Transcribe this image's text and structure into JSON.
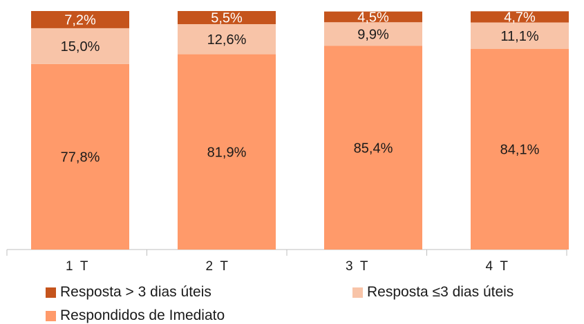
{
  "chart_data": {
    "type": "bar",
    "stacked": true,
    "categories": [
      "1  T",
      "2  T",
      "3  T",
      "4  T"
    ],
    "series": [
      {
        "name": "Respondidos de Imediato",
        "values": [
          77.8,
          81.9,
          85.4,
          84.1
        ],
        "labels": [
          "77,8%",
          "81,9%",
          "85,4%",
          "84,1%"
        ],
        "color": "#ff9a6a"
      },
      {
        "name": "Resposta ≤3 dias úteis",
        "values": [
          15.0,
          12.6,
          9.9,
          11.1
        ],
        "labels": [
          "15,0%",
          "12,6%",
          "9,9%",
          "11,1%"
        ],
        "color": "#f8c4a8"
      },
      {
        "name": "Resposta > 3 dias úteis",
        "values": [
          7.2,
          5.5,
          4.5,
          4.7
        ],
        "labels": [
          "7,2%",
          "5,5%",
          "4,5%",
          "4,7%"
        ],
        "color": "#c5541c"
      }
    ],
    "ylim": [
      0,
      100
    ],
    "grid": false,
    "legend_position": "bottom"
  },
  "legend": {
    "items": [
      {
        "label": "Resposta > 3 dias úteis",
        "color": "#c5541c"
      },
      {
        "label": "Resposta ≤3 dias úteis",
        "color": "#f8c4a8"
      },
      {
        "label": "Respondidos de Imediato",
        "color": "#ff9a6a"
      }
    ]
  }
}
